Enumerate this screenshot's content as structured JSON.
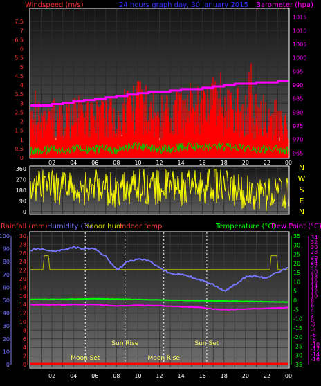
{
  "header": {
    "windspeed_title": "Windspeed (m/s)",
    "graph_title": "24 hours graph day, 30 January 2015",
    "barometer_title": "Barometer (hpa)"
  },
  "direction_labels": [
    "N",
    "W",
    "S",
    "E",
    "N"
  ],
  "bottom_legend": {
    "rainfall": "Rainfall (mm)",
    "humidity": "Humidity (%)",
    "indoor_hum": "Indoor hum",
    "indoor_temp": "Indoor temp",
    "temperature": "Temperature (°C)",
    "dew_point": "Dew Point (°C)"
  },
  "events": [
    {
      "label": "Moon Set",
      "hour": 5.1,
      "row": "low"
    },
    {
      "label": "Sun Rise",
      "hour": 8.8,
      "row": "high"
    },
    {
      "label": "Moon Rise",
      "hour": 12.4,
      "row": "low"
    },
    {
      "label": "Sun Set",
      "hour": 16.4,
      "row": "high"
    }
  ],
  "colors": {
    "wind": "#ff0000",
    "wind_avg": "#00cc00",
    "gust_bars": "#c8ffc8",
    "barometer": "#ff00ff",
    "direction": "#ffff00",
    "humidity": "#7777ff",
    "temperature": "#00ff00",
    "dew_point": "#ff00ff",
    "indoor_temp": "#ff4040",
    "rainfall": "#ff0000",
    "indoor_hum": "#cccc00",
    "title": "#3333ff",
    "axis_labels": "#ff3333",
    "right_axis": "#ff00ff"
  },
  "chart_data": [
    {
      "type": "area",
      "title": "24 hours graph day, 30 January 2015",
      "x_ticks": [
        "02",
        "04",
        "06",
        "08",
        "10",
        "12",
        "14",
        "16",
        "18",
        "20",
        "22",
        "00"
      ],
      "y_left": {
        "label": "Windspeed (m/s)",
        "ticks": [
          "0",
          "0.5",
          "1",
          "1.5",
          "2",
          "2.5",
          "3",
          "3.5",
          "4",
          "4.5",
          "5",
          "5.5",
          "6",
          "6.5",
          "7",
          "7.5"
        ],
        "range": [
          0,
          8
        ]
      },
      "y_right": {
        "label": "Barometer (hpa)",
        "ticks": [
          "965",
          "970",
          "975",
          "980",
          "985",
          "990",
          "995",
          "1000",
          "1005",
          "1010",
          "1015"
        ],
        "range": [
          963.3,
          1016.7
        ]
      },
      "series": [
        {
          "name": "Windspeed (m/s)",
          "x": [
            0,
            1,
            2,
            3,
            4,
            5,
            6,
            7,
            8,
            9,
            10,
            11,
            12,
            13,
            14,
            15,
            16,
            17,
            18,
            19,
            20,
            21,
            22,
            23,
            24
          ],
          "values": [
            2.0,
            2.2,
            2.6,
            2.4,
            2.8,
            2.5,
            2.6,
            3.0,
            2.4,
            3.2,
            3.4,
            3.0,
            2.6,
            2.8,
            3.1,
            3.5,
            3.0,
            3.4,
            3.3,
            3.4,
            2.9,
            2.8,
            2.5,
            2.6,
            2.0
          ]
        },
        {
          "name": "Barometer (hpa)",
          "x": [
            0,
            2,
            3,
            4,
            5,
            6,
            7,
            8,
            9,
            10,
            11,
            12,
            13,
            14,
            15,
            16,
            17,
            18,
            19,
            20,
            21,
            22,
            23,
            24
          ],
          "values": [
            982.5,
            983.0,
            983.5,
            984.0,
            984.5,
            985.0,
            985.5,
            986.0,
            986.5,
            987.0,
            987.5,
            987.5,
            988.0,
            988.5,
            988.5,
            989.0,
            989.5,
            990.0,
            990.5,
            990.5,
            991.0,
            991.0,
            991.5,
            991.5
          ]
        }
      ]
    },
    {
      "type": "scatter",
      "title": "",
      "x_ticks": [
        "02",
        "04",
        "06",
        "08",
        "10",
        "12",
        "14",
        "16",
        "18",
        "20",
        "22",
        "00"
      ],
      "y_ticks": [
        "0",
        "90",
        "180",
        "270",
        "360"
      ],
      "ylim": [
        0,
        360
      ],
      "series": [
        {
          "name": "",
          "x": [
            0,
            1,
            2,
            3,
            4,
            5,
            6,
            7,
            8,
            9,
            10,
            11,
            12,
            13,
            14,
            15,
            16,
            17,
            18,
            19,
            20,
            21,
            22,
            23,
            24
          ],
          "values": [
            180,
            200,
            210,
            190,
            220,
            200,
            210,
            190,
            180,
            200,
            230,
            210,
            200,
            220,
            190,
            200,
            210,
            230,
            200,
            180,
            170,
            160,
            150,
            160,
            140
          ]
        }
      ]
    },
    {
      "type": "line",
      "title": "",
      "x_ticks": [
        "02",
        "04",
        "06",
        "08",
        "10",
        "12",
        "14",
        "16",
        "18",
        "20",
        "22",
        "00"
      ],
      "y_left_humidity": [
        "0",
        "10",
        "20",
        "30",
        "40",
        "50",
        "60",
        "70",
        "80",
        "90",
        "100"
      ],
      "y_left_rain": [
        "0",
        "2",
        "4",
        "6",
        "8",
        "10",
        "12",
        "14",
        "16",
        "18",
        "20",
        "22",
        "24",
        "26",
        "28",
        "30"
      ],
      "y_right_temp": [
        "-35",
        "-30",
        "-25",
        "-20",
        "-15",
        "-10",
        "-5",
        "0",
        "5",
        "10",
        "15",
        "20",
        "25",
        "30",
        "35"
      ],
      "y_right_dew": [
        "-16",
        "-14",
        "-12",
        "-10",
        "-8",
        "-6",
        "-4",
        "-2",
        "0",
        "2",
        "4",
        "6",
        "8",
        "10",
        "12",
        "14",
        "16",
        "18",
        "20",
        "22",
        "24",
        "26",
        "28",
        "30",
        "32",
        "34"
      ],
      "series": [
        {
          "name": "Humidity (%)",
          "x": [
            0,
            1,
            2,
            3,
            4,
            5,
            6,
            7,
            7.5,
            8,
            8.5,
            9,
            10,
            11,
            12,
            13,
            14,
            15,
            16,
            17,
            17.5,
            18,
            19,
            20,
            21,
            22,
            23,
            24
          ],
          "values": [
            89,
            90,
            88,
            89,
            91,
            90,
            90,
            84,
            79,
            74,
            76,
            80,
            82,
            81,
            75,
            71,
            70,
            68,
            65,
            62,
            60,
            57,
            62,
            68,
            69,
            67,
            72,
            75
          ]
        },
        {
          "name": "Temperature (°C)",
          "x": [
            0,
            3,
            6,
            9,
            12,
            15,
            18,
            20,
            22,
            24
          ],
          "values": [
            0.5,
            0.5,
            0.8,
            0.5,
            0.2,
            -0.2,
            -0.4,
            -0.6,
            -0.8,
            -1.0
          ]
        },
        {
          "name": "Dew Point (°C)",
          "x": [
            0,
            3,
            6,
            8,
            9,
            10,
            12,
            14,
            16,
            17,
            18,
            19,
            20,
            21,
            22,
            23,
            24
          ],
          "values": [
            -2.5,
            -2.5,
            -2.3,
            -3.2,
            -3.0,
            -2.8,
            -3.0,
            -3.5,
            -4.0,
            -4.8,
            -5.2,
            -5.0,
            -4.8,
            -4.6,
            -4.4,
            -4.2,
            -4.0
          ]
        },
        {
          "name": "Rainfall (mm)",
          "x": [
            0,
            24
          ],
          "values": [
            0,
            0
          ]
        },
        {
          "name": "Indoor hum",
          "x": [
            0,
            2,
            3,
            4,
            5,
            6,
            7,
            8,
            9,
            10,
            11,
            12,
            13,
            14,
            15,
            16,
            17,
            18,
            19,
            20,
            21,
            22,
            23,
            24
          ],
          "values": [
            4.1,
            4.1,
            4.1,
            4.1,
            4.1,
            4.1,
            4.1,
            4.1,
            4.1,
            4.1,
            4.1,
            4.1,
            4.1,
            4.1,
            4.1,
            4.1,
            4.1,
            4.1,
            4.1,
            4.1,
            4.1,
            4.1,
            4.1,
            4.1
          ]
        }
      ]
    }
  ]
}
